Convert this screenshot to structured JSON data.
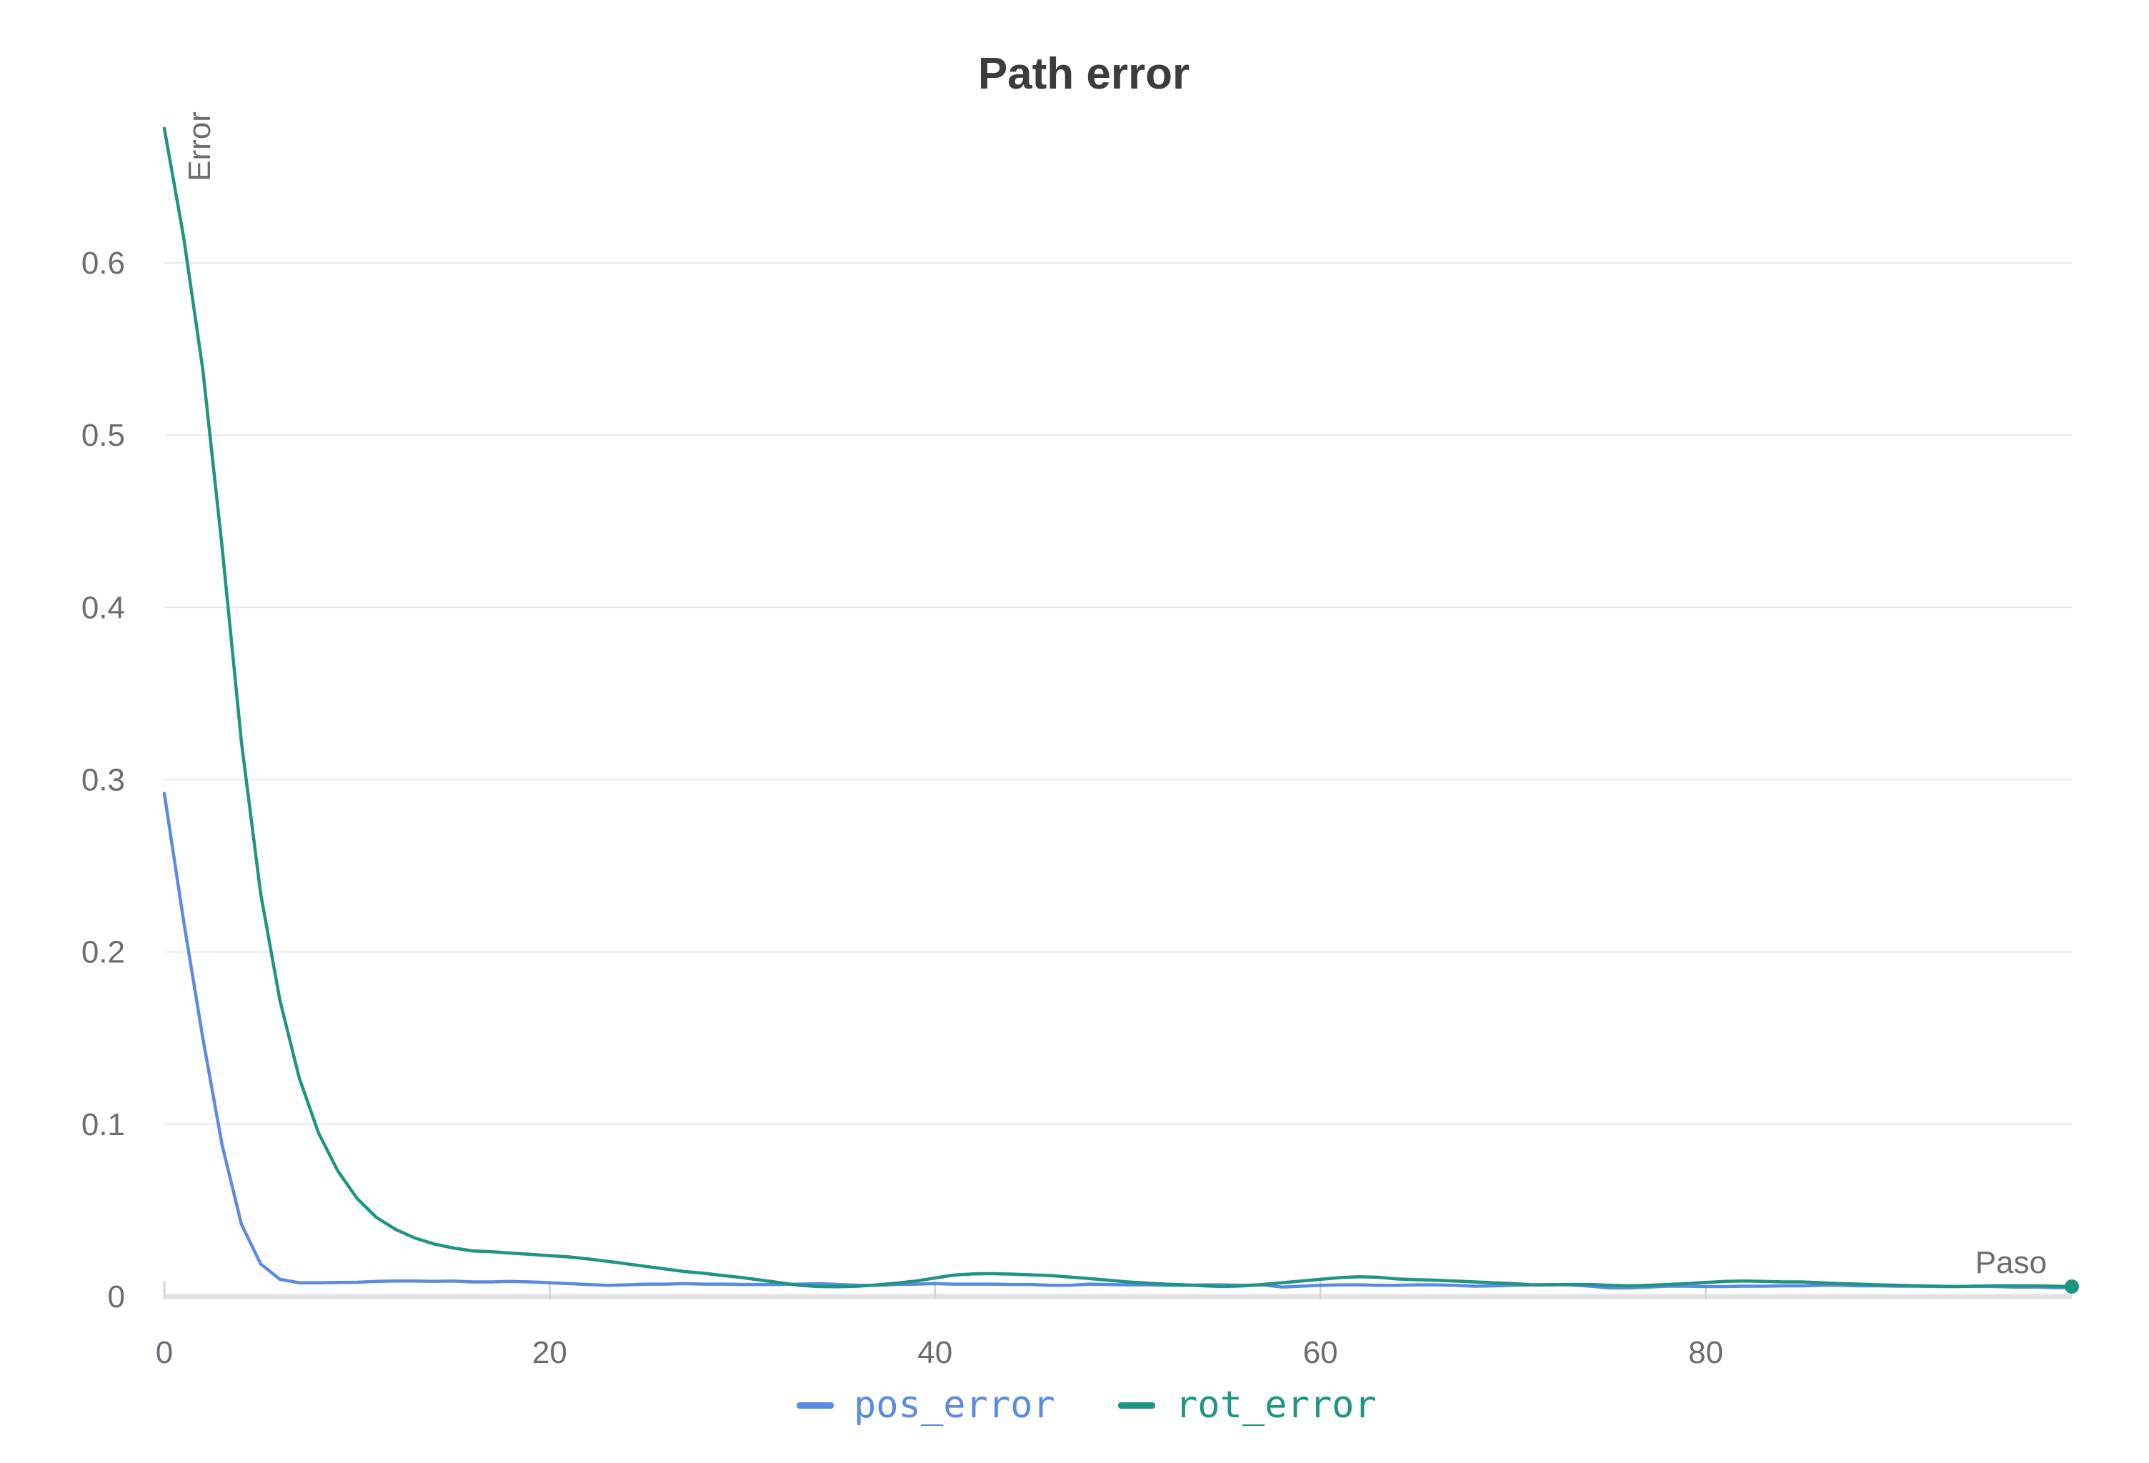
{
  "chart_data": {
    "type": "line",
    "title": "Path error",
    "xlabel": "Paso",
    "ylabel": "Error",
    "xlim": [
      0,
      99
    ],
    "ylim": [
      0,
      0.68
    ],
    "xticks": [
      "0",
      "20",
      "40",
      "60",
      "80"
    ],
    "xtick_values": [
      0,
      20,
      40,
      60,
      80
    ],
    "yticks": [
      "0",
      "0.1",
      "0.2",
      "0.3",
      "0.4",
      "0.5",
      "0.6"
    ],
    "ytick_values": [
      0,
      0.1,
      0.2,
      0.3,
      0.4,
      0.5,
      0.6
    ],
    "grid": "horizontal",
    "legend_position": "bottom",
    "series": [
      {
        "name": "pos_error",
        "color": "#5b8bdf",
        "x": [
          0,
          1,
          2,
          3,
          4,
          5,
          6,
          7,
          8,
          9,
          10,
          11,
          12,
          13,
          14,
          15,
          16,
          17,
          18,
          19,
          20,
          21,
          22,
          23,
          24,
          25,
          26,
          27,
          28,
          29,
          30,
          31,
          32,
          33,
          34,
          35,
          36,
          37,
          38,
          39,
          40,
          41,
          42,
          43,
          44,
          45,
          46,
          47,
          48,
          49,
          50,
          51,
          52,
          53,
          54,
          55,
          56,
          57,
          58,
          59,
          60,
          61,
          62,
          63,
          64,
          65,
          66,
          67,
          68,
          69,
          70,
          71,
          72,
          73,
          74,
          75,
          76,
          77,
          78,
          79,
          80,
          81,
          82,
          83,
          84,
          85,
          86,
          87,
          88,
          89,
          90,
          91,
          92,
          93,
          94,
          95,
          96,
          97,
          98,
          99
        ],
        "values": [
          0.292,
          0.218,
          0.15,
          0.088,
          0.042,
          0.019,
          0.01,
          0.008,
          0.008,
          0.0082,
          0.0083,
          0.0088,
          0.009,
          0.009,
          0.0088,
          0.009,
          0.0085,
          0.0085,
          0.0088,
          0.0085,
          0.008,
          0.0075,
          0.007,
          0.0065,
          0.0068,
          0.0072,
          0.0072,
          0.0075,
          0.0072,
          0.0072,
          0.007,
          0.007,
          0.007,
          0.0072,
          0.0075,
          0.007,
          0.0065,
          0.0065,
          0.007,
          0.0072,
          0.0075,
          0.0072,
          0.0072,
          0.0072,
          0.007,
          0.007,
          0.0065,
          0.0065,
          0.0072,
          0.007,
          0.0068,
          0.0068,
          0.0065,
          0.0065,
          0.0068,
          0.0068,
          0.0065,
          0.0068,
          0.0055,
          0.006,
          0.0065,
          0.0068,
          0.0068,
          0.0065,
          0.0065,
          0.0068,
          0.0068,
          0.0065,
          0.006,
          0.0062,
          0.0065,
          0.0068,
          0.007,
          0.0068,
          0.006,
          0.005,
          0.005,
          0.0055,
          0.006,
          0.006,
          0.0058,
          0.0058,
          0.006,
          0.006,
          0.0062,
          0.0062,
          0.0065,
          0.0065,
          0.0062,
          0.0062,
          0.006,
          0.006,
          0.0058,
          0.0058,
          0.006,
          0.0058,
          0.0055,
          0.0055,
          0.0052,
          0.005
        ]
      },
      {
        "name": "rot_error",
        "color": "#1f9483",
        "x": [
          0,
          1,
          2,
          3,
          4,
          5,
          6,
          7,
          8,
          9,
          10,
          11,
          12,
          13,
          14,
          15,
          16,
          17,
          18,
          19,
          20,
          21,
          22,
          23,
          24,
          25,
          26,
          27,
          28,
          29,
          30,
          31,
          32,
          33,
          34,
          35,
          36,
          37,
          38,
          39,
          40,
          41,
          42,
          43,
          44,
          45,
          46,
          47,
          48,
          49,
          50,
          51,
          52,
          53,
          54,
          55,
          56,
          57,
          58,
          59,
          60,
          61,
          62,
          63,
          64,
          65,
          66,
          67,
          68,
          69,
          70,
          71,
          72,
          73,
          74,
          75,
          76,
          77,
          78,
          79,
          80,
          81,
          82,
          83,
          84,
          85,
          86,
          87,
          88,
          89,
          90,
          91,
          92,
          93,
          94,
          95,
          96,
          97,
          98,
          99
        ],
        "values": [
          0.678,
          0.615,
          0.538,
          0.435,
          0.322,
          0.234,
          0.172,
          0.127,
          0.095,
          0.073,
          0.057,
          0.046,
          0.039,
          0.034,
          0.0305,
          0.0282,
          0.0265,
          0.026,
          0.0252,
          0.0245,
          0.0237,
          0.023,
          0.0218,
          0.0205,
          0.019,
          0.0175,
          0.016,
          0.0145,
          0.0135,
          0.0122,
          0.011,
          0.0095,
          0.008,
          0.0065,
          0.0058,
          0.0057,
          0.006,
          0.0068,
          0.0078,
          0.009,
          0.0108,
          0.0125,
          0.0132,
          0.0133,
          0.013,
          0.0126,
          0.0122,
          0.0113,
          0.0105,
          0.0095,
          0.0085,
          0.0078,
          0.0072,
          0.0068,
          0.0062,
          0.0058,
          0.0062,
          0.007,
          0.008,
          0.009,
          0.01,
          0.011,
          0.0115,
          0.0112,
          0.0102,
          0.0098,
          0.0095,
          0.009,
          0.0085,
          0.008,
          0.0075,
          0.0068,
          0.0068,
          0.007,
          0.007,
          0.0065,
          0.0062,
          0.0065,
          0.007,
          0.0075,
          0.0082,
          0.0088,
          0.009,
          0.0088,
          0.0085,
          0.0085,
          0.008,
          0.0075,
          0.0072,
          0.0068,
          0.0065,
          0.0062,
          0.006,
          0.0058,
          0.006,
          0.0062,
          0.0062,
          0.0062,
          0.006,
          0.0058
        ]
      }
    ]
  }
}
